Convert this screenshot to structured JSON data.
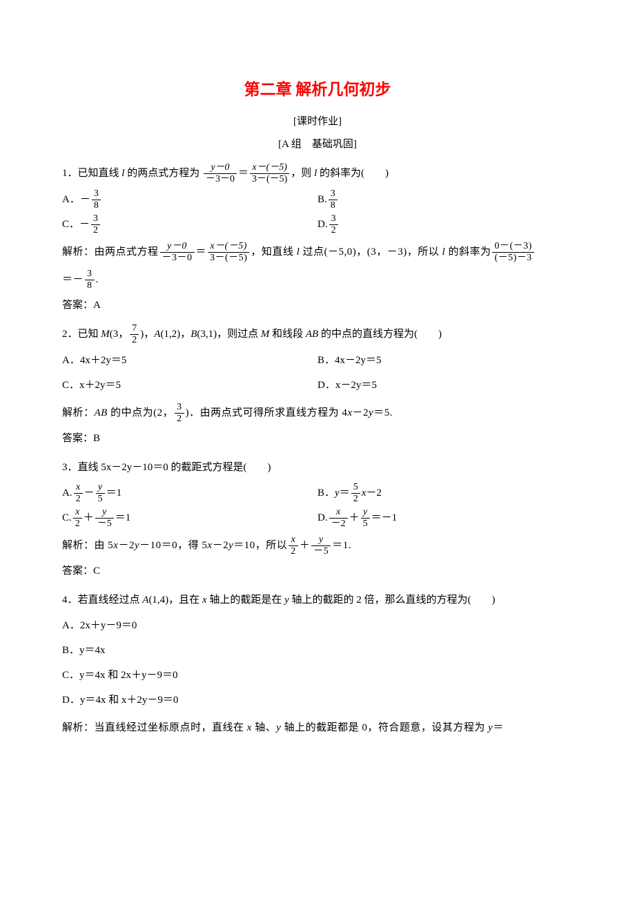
{
  "title": "第二章 解析几何初步",
  "subtitle": "[课时作业]",
  "section": "[A 组　基础巩固]",
  "colors": {
    "title": "#ff0000",
    "text": "#000000",
    "background": "#ffffff"
  },
  "typography": {
    "title_fontsize": 23,
    "body_fontsize": 15,
    "frac_fontsize": 14,
    "title_weight": "bold",
    "font_family": "SimSun"
  },
  "q1": {
    "stem_pre": "1．已知直线 ",
    "stem_l": "l",
    "stem_mid": " 的两点式方程为",
    "eq_lnum": "y－0",
    "eq_lden": "－3－0",
    "eq_rnum": "x－(－5)",
    "eq_rden": "3－(－5)",
    "stem_post1": "，则 ",
    "stem_post2": " 的斜率为(　　)",
    "optA_pre": "A．－",
    "optA_num": "3",
    "optA_den": "8",
    "optB_pre": "B.",
    "optB_num": "3",
    "optB_den": "8",
    "optC_pre": "C．－",
    "optC_num": "3",
    "optC_den": "2",
    "optD_pre": "D.",
    "optD_num": "3",
    "optD_den": "2",
    "sol_pre": "解析：由两点式方程",
    "sol_mid1": "，知直线 ",
    "sol_mid2": " 过点(－5,0)，(3，－3)，所以 ",
    "sol_mid3": " 的斜率为",
    "sol_knum": "0－(－3)",
    "sol_kden": "(－5)－3",
    "sol_eq": "＝－",
    "sol_rnum": "3",
    "sol_rden": "8",
    "sol_dot": ".",
    "answer": "答案：A"
  },
  "q2": {
    "stem_pre": "2．已知 ",
    "M": "M",
    "M_open": "(3，",
    "M_num": "7",
    "M_den": "2",
    "M_close": ")，",
    "A": "A",
    "A_txt": "(1,2)，",
    "B": "B",
    "B_txt": "(3,1)，则过点 ",
    "mid": " 和线段 ",
    "AB": "AB",
    "post": " 的中点的直线方程为(　　)",
    "optA": "A．4x＋2y＝5",
    "optB": "B．4x－2y＝5",
    "optC": "C．x＋2y＝5",
    "optD": "D．x－2y＝5",
    "sol_pre": "解析：",
    "sol_mid1": " 的中点为(2，",
    "sol_num": "3",
    "sol_den": "2",
    "sol_mid2": ")．由两点式可得所求直线方程为 4",
    "sol_x": "x",
    "sol_mid3": "－2",
    "sol_y": "y",
    "sol_end": "＝5.",
    "answer": "答案：B"
  },
  "q3": {
    "stem": "3．直线 5x－2y－10＝0 的截距式方程是(　　)",
    "optA_pre": "A.",
    "optA_n1": "x",
    "optA_d1": "2",
    "optA_mid": "－",
    "optA_n2": "y",
    "optA_d2": "5",
    "optA_end": "＝1",
    "optB_pre": "B．",
    "optB_y": "y",
    "optB_eq": "＝",
    "optB_num": "5",
    "optB_den": "2",
    "optB_x": "x",
    "optB_end": "－2",
    "optC_pre": "C.",
    "optC_n1": "x",
    "optC_d1": "2",
    "optC_mid": "＋",
    "optC_n2": "y",
    "optC_d2": "－5",
    "optC_end": "＝1",
    "optD_pre": "D.",
    "optD_n1": "x",
    "optD_d1": "－2",
    "optD_mid": "＋",
    "optD_n2": "y",
    "optD_d2": "5",
    "optD_end": "＝－1",
    "sol_pre": "解析：由 5",
    "sol_x1": "x",
    "sol_m1": "－2",
    "sol_y1": "y",
    "sol_m2": "－10＝0，得 5",
    "sol_m3": "＝10，所以",
    "sol_n1": "x",
    "sol_d1": "2",
    "sol_plus": "＋",
    "sol_n2": "y",
    "sol_d2": "－5",
    "sol_end": "＝1.",
    "answer": "答案：C"
  },
  "q4": {
    "stem_pre": "4．若直线经过点 ",
    "A": "A",
    "stem_mid1": "(1,4)，且在 ",
    "x": "x",
    "stem_mid2": " 轴上的截距是在 ",
    "y": "y",
    "stem_post": " 轴上的截距的 2 倍，那么直线的方程为(　　)",
    "optA": "A．2x＋y－9＝0",
    "optB": "B．y＝4x",
    "optC": "C．y＝4x 和 2x＋y－9＝0",
    "optD": "D．y＝4x 和 x＋2y－9＝0",
    "sol_pre": "解析：当直线经过坐标原点时，直线在 ",
    "sol_mid1": " 轴、",
    "sol_mid2": " 轴上的截距都是 0，符合题意，设其方程为 ",
    "sol_end": "＝"
  }
}
